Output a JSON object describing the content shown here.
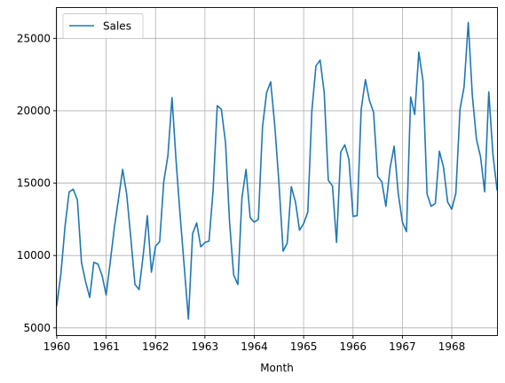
{
  "chart_data": {
    "type": "line",
    "title": "",
    "xlabel": "Month",
    "ylabel": "",
    "grid": true,
    "legend": {
      "position": "top-left",
      "entries": [
        "Sales"
      ]
    },
    "x_start": "1960-01",
    "x_end": "1968-12",
    "x_ticks": [
      "1960",
      "1961",
      "1962",
      "1963",
      "1964",
      "1965",
      "1966",
      "1967",
      "1968"
    ],
    "y_ticks": [
      5000,
      10000,
      15000,
      20000,
      25000
    ],
    "ylim": [
      4500,
      27100
    ],
    "series": [
      {
        "name": "Sales",
        "color": "#1f77b4",
        "values": [
          6550,
          8730,
          12030,
          14390,
          14580,
          13840,
          9530,
          8200,
          7100,
          9530,
          9400,
          8630,
          7260,
          9600,
          11950,
          13900,
          15950,
          14200,
          11200,
          8000,
          7650,
          10000,
          12750,
          8850,
          10650,
          10950,
          15100,
          16900,
          20900,
          16550,
          12650,
          9150,
          5600,
          11500,
          12250,
          10600,
          10900,
          11000,
          14500,
          20350,
          20100,
          17800,
          12250,
          8650,
          8000,
          14000,
          15950,
          12600,
          12300,
          12500,
          18900,
          21250,
          22000,
          18900,
          15000,
          10300,
          10850,
          14750,
          13700,
          11750,
          12200,
          13000,
          20000,
          23100,
          23500,
          21250,
          15200,
          14800,
          10900,
          17150,
          17650,
          16650,
          12700,
          12750,
          20100,
          22150,
          20700,
          19900,
          15450,
          15100,
          13400,
          16050,
          17550,
          14300,
          12300,
          11650,
          20950,
          19750,
          24050,
          22050,
          14250,
          13400,
          13600,
          17200,
          16100,
          13700,
          13200,
          14300,
          20100,
          21650,
          26100,
          21050,
          18050,
          16800,
          14400,
          21300,
          17000,
          14550
        ]
      }
    ]
  }
}
